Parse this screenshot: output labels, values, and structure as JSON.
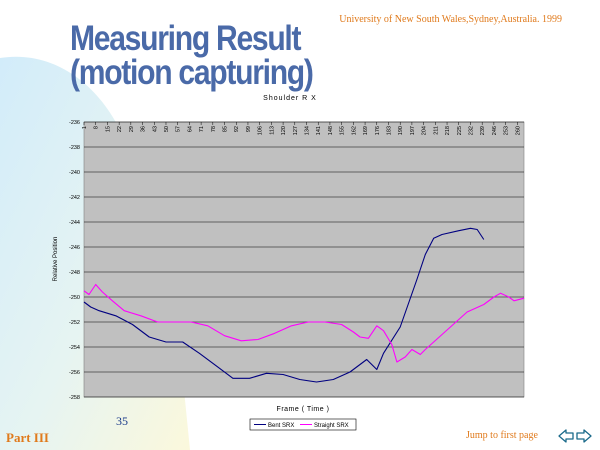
{
  "header": {
    "university": "University of  New South Wales,Sydney,Australia. 1999",
    "title_line1": "Measuring Result",
    "title_line2": "(motion capturing)"
  },
  "footer": {
    "page_number": "35",
    "part": "Part III",
    "jump_link": "Jump to first page"
  },
  "colors": {
    "title": "#4a6aa8",
    "accent": "#e07a1c",
    "plot_bg": "#c0c0c0",
    "bent": "#000080",
    "straight": "#ff00ff"
  },
  "icons": [
    "prev-arrow-icon",
    "next-arrow-icon"
  ],
  "chart_data": {
    "type": "line",
    "title": "Shoulder R X",
    "xlabel": "Frame ( Time )",
    "ylabel": "Relative Position",
    "ylim": [
      -258,
      -236
    ],
    "yticks": [
      -236,
      -238,
      -240,
      -242,
      -244,
      -246,
      -248,
      -250,
      -252,
      -254,
      -256,
      -258
    ],
    "xlim": [
      1,
      264
    ],
    "xticks": [
      1,
      8,
      15,
      22,
      29,
      36,
      43,
      50,
      57,
      64,
      71,
      78,
      85,
      92,
      99,
      106,
      113,
      120,
      127,
      134,
      141,
      148,
      155,
      162,
      169,
      176,
      183,
      190,
      197,
      204,
      211,
      218,
      225,
      232,
      239,
      246,
      253,
      260
    ],
    "grid": true,
    "legend": "bottom-center",
    "series": [
      {
        "name": "Bent SRX",
        "color": "#000080",
        "x": [
          1,
          5,
          10,
          20,
          30,
          40,
          50,
          60,
          70,
          80,
          90,
          100,
          110,
          120,
          130,
          140,
          150,
          160,
          170,
          176,
          180,
          190,
          200,
          205,
          210,
          215,
          225,
          232,
          236,
          240
        ],
        "y": [
          -250.4,
          -250.8,
          -251.1,
          -251.5,
          -252.2,
          -253.2,
          -253.6,
          -253.6,
          -254.5,
          -255.5,
          -256.5,
          -256.5,
          -256.1,
          -256.2,
          -256.6,
          -256.8,
          -256.6,
          -256.0,
          -255.0,
          -255.8,
          -254.5,
          -252.4,
          -248.6,
          -246.6,
          -245.3,
          -245.0,
          -244.7,
          -244.5,
          -244.6,
          -245.4
        ]
      },
      {
        "name": "Straight SRX",
        "color": "#ff00ff",
        "x": [
          1,
          4,
          8,
          12,
          18,
          25,
          35,
          45,
          55,
          65,
          75,
          85,
          95,
          105,
          115,
          125,
          135,
          145,
          155,
          162,
          166,
          171,
          176,
          180,
          185,
          188,
          193,
          197,
          202,
          205,
          210,
          220,
          230,
          240,
          246,
          250,
          255,
          258,
          264
        ],
        "y": [
          -249.5,
          -249.8,
          -249.0,
          -249.6,
          -250.3,
          -251.1,
          -251.5,
          -252.0,
          -252.0,
          -252.0,
          -252.3,
          -253.1,
          -253.5,
          -253.4,
          -252.9,
          -252.3,
          -252.0,
          -252.0,
          -252.2,
          -252.8,
          -253.2,
          -253.3,
          -252.3,
          -252.7,
          -253.8,
          -255.2,
          -254.8,
          -254.2,
          -254.6,
          -254.2,
          -253.6,
          -252.4,
          -251.2,
          -250.6,
          -250.0,
          -249.7,
          -250.0,
          -250.3,
          -250.1
        ]
      }
    ]
  }
}
